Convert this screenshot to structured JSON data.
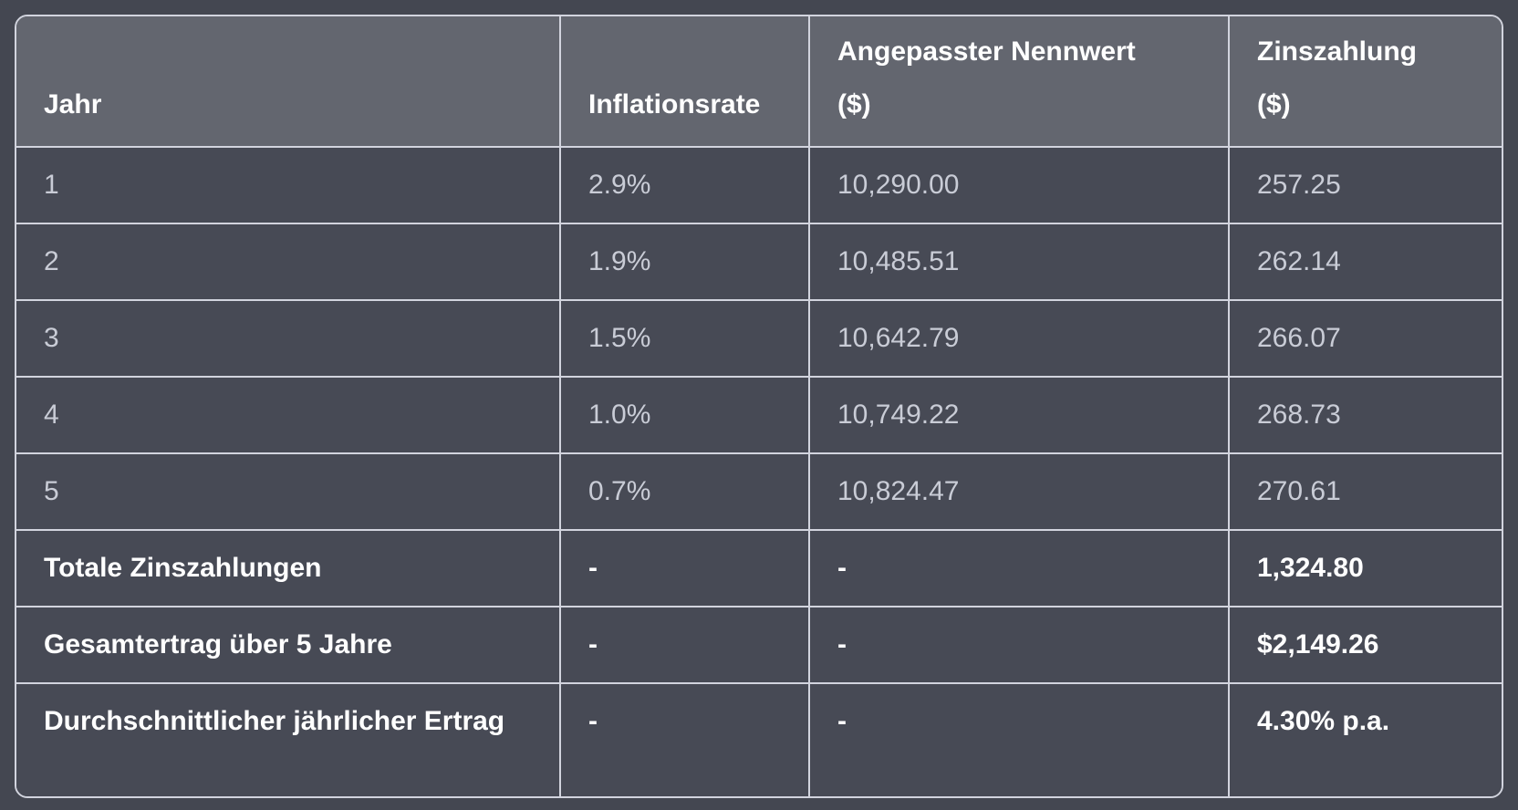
{
  "colors": {
    "page_background": "#444751",
    "header_background": "#63666F",
    "row_background": "#474A55",
    "grid_border": "#D2D4DE",
    "body_text": "#C9CCD6",
    "emphasis_text": "#FFFFFF"
  },
  "table": {
    "columns": [
      {
        "label": "Jahr",
        "lines": [
          "Jahr"
        ]
      },
      {
        "label": "Inflationsrate",
        "lines": [
          "Inflationsrate"
        ]
      },
      {
        "label": "Angepasster Nennwert ($)",
        "lines": [
          "Angepasster Nennwert",
          "($)"
        ]
      },
      {
        "label": "Zinszahlung ($)",
        "lines": [
          "Zinszahlung",
          "($)"
        ]
      }
    ],
    "rows": [
      [
        "1",
        "2.9%",
        "10,290.00",
        "257.25"
      ],
      [
        "2",
        "1.9%",
        "10,485.51",
        "262.14"
      ],
      [
        "3",
        "1.5%",
        "10,642.79",
        "266.07"
      ],
      [
        "4",
        "1.0%",
        "10,749.22",
        "268.73"
      ],
      [
        "5",
        "0.7%",
        "10,824.47",
        "270.61"
      ]
    ],
    "summary_rows": [
      [
        "Totale Zinszahlungen",
        "-",
        "-",
        "1,324.80"
      ],
      [
        "Gesamtertrag über 5 Jahre",
        "-",
        "-",
        "$2,149.26"
      ],
      [
        "Durchschnittlicher jährlicher Ertrag",
        "-",
        "-",
        "4.30% p.a."
      ]
    ]
  },
  "chart_data": {
    "type": "table",
    "columns": [
      "Jahr",
      "Inflationsrate",
      "Angepasster Nennwert ($)",
      "Zinszahlung ($)"
    ],
    "rows": [
      [
        "1",
        "2.9%",
        "10,290.00",
        "257.25"
      ],
      [
        "2",
        "1.9%",
        "10,485.51",
        "262.14"
      ],
      [
        "3",
        "1.5%",
        "10,642.79",
        "266.07"
      ],
      [
        "4",
        "1.0%",
        "10,749.22",
        "268.73"
      ],
      [
        "5",
        "0.7%",
        "10,824.47",
        "270.61"
      ],
      [
        "Totale Zinszahlungen",
        "-",
        "-",
        "1,324.80"
      ],
      [
        "Gesamtertrag über 5 Jahre",
        "-",
        "-",
        "$2,149.26"
      ],
      [
        "Durchschnittlicher jährlicher Ertrag",
        "-",
        "-",
        "4.30% p.a."
      ]
    ]
  }
}
